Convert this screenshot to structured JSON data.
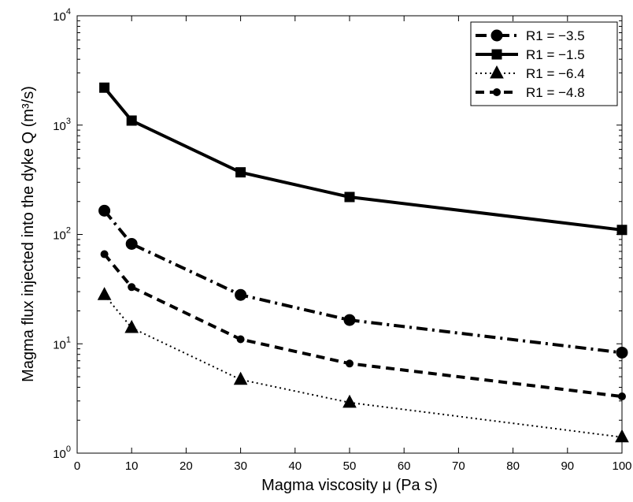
{
  "chart_data": {
    "type": "line",
    "xlabel": "Magma viscosity μ (Pa s)",
    "ylabel": "Magma flux injected into the dyke Q (m³/s)",
    "xlim": [
      0,
      100
    ],
    "ylim": [
      1,
      10000
    ],
    "yscale": "log",
    "grid": false,
    "legend_position": "top-right",
    "x_ticks": [
      "0",
      "10",
      "20",
      "30",
      "40",
      "50",
      "60",
      "70",
      "80",
      "90",
      "100"
    ],
    "y_ticks": [
      {
        "base": "10",
        "exp": "0"
      },
      {
        "base": "10",
        "exp": "1"
      },
      {
        "base": "10",
        "exp": "2"
      },
      {
        "base": "10",
        "exp": "3"
      },
      {
        "base": "10",
        "exp": "4"
      }
    ],
    "x": [
      5,
      10,
      30,
      50,
      100
    ],
    "series": [
      {
        "name": "R1 = −3.5",
        "values": [
          165,
          82,
          28,
          16.5,
          8.3
        ],
        "linestyle": "dash-dot",
        "marker": "circle",
        "color": "#000000"
      },
      {
        "name": "R1 = −1.5",
        "values": [
          2200,
          1100,
          370,
          220,
          110
        ],
        "linestyle": "solid",
        "marker": "square",
        "color": "#000000"
      },
      {
        "name": "R1 = −6.4",
        "values": [
          28,
          14,
          4.7,
          2.9,
          1.4
        ],
        "linestyle": "dotted",
        "marker": "triangle",
        "color": "#000000"
      },
      {
        "name": "R1 = −4.8",
        "values": [
          66,
          33,
          11,
          6.6,
          3.3
        ],
        "linestyle": "dashed",
        "marker": "small-circle",
        "color": "#000000"
      }
    ]
  }
}
